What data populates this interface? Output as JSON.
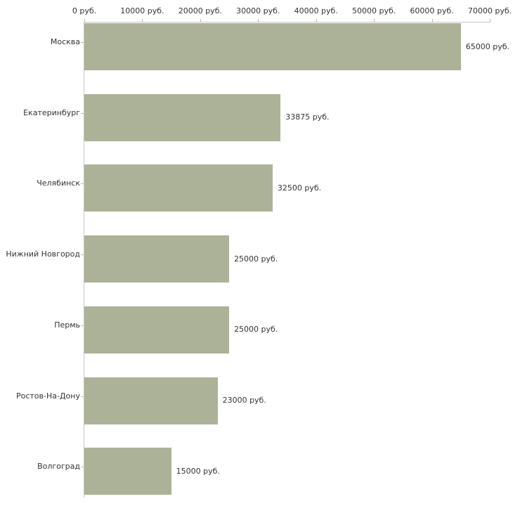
{
  "chart_data": {
    "type": "bar",
    "orientation": "horizontal",
    "title": "",
    "categories": [
      "Москва",
      "Екатеринбург",
      "Челябинск",
      "Нижний Новгород",
      "Пермь",
      "Ростов-На-Дону",
      "Волгоград"
    ],
    "values": [
      65000,
      33875,
      32500,
      25000,
      25000,
      23000,
      15000
    ],
    "value_labels": [
      "65000 руб.",
      "33875 руб.",
      "32500 руб.",
      "25000 руб.",
      "25000 руб.",
      "23000 руб.",
      "15000 руб."
    ],
    "x_axis": {
      "position": "top",
      "min": 0,
      "max": 70000,
      "ticks": [
        0,
        10000,
        20000,
        30000,
        40000,
        50000,
        60000,
        70000
      ],
      "tick_labels": [
        "0 руб.",
        "10000 руб.",
        "20000 руб.",
        "30000 руб.",
        "40000 руб.",
        "50000 руб.",
        "60000 руб.",
        "70000 руб."
      ]
    },
    "ylabel": "",
    "xlabel": "",
    "grid": false,
    "legend": false,
    "colors": {
      "bar": "#abb297",
      "axis_line": "#c6c6c6",
      "tick_mark": "#c6bd94",
      "text": "#333333",
      "background": "#ffffff"
    }
  }
}
